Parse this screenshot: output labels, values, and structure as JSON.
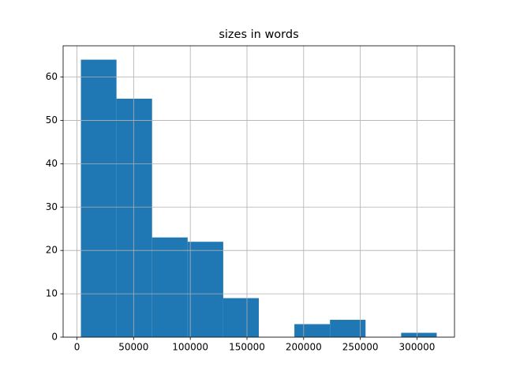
{
  "chart_data": {
    "type": "histogram",
    "title": "sizes in words",
    "bins": [
      3500,
      34890,
      66280,
      97670,
      129060,
      160450,
      191840,
      223230,
      254620,
      286010,
      317400
    ],
    "values": [
      64,
      55,
      23,
      22,
      9,
      0,
      3,
      4,
      0,
      1
    ],
    "color": "#1f77b4",
    "xlim": [
      -12195,
      333095
    ],
    "xticks": [
      0,
      50000,
      100000,
      150000,
      200000,
      250000,
      300000
    ],
    "ylim": [
      0,
      67.2
    ],
    "yticks": [
      0,
      10,
      20,
      30,
      40,
      50,
      60
    ],
    "grid": true
  }
}
